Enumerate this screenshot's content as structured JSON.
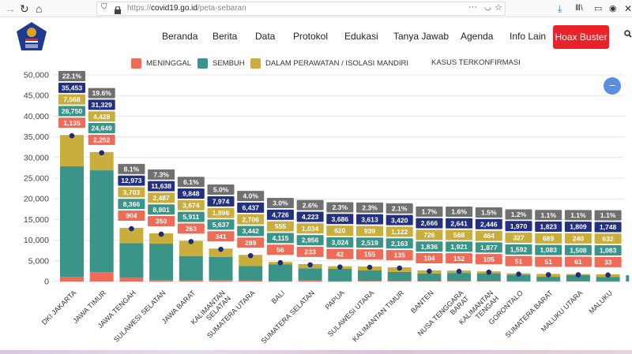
{
  "browser": {
    "url_prefix": "https://",
    "url_domain": "covid19.go.id",
    "url_path": "/peta-sebaran",
    "icons": [
      "forward-icon",
      "reload-icon",
      "home-icon",
      "shield-icon",
      "lock-icon",
      "more-icon",
      "pocket-icon",
      "star-icon",
      "download-icon",
      "library-icon",
      "sidebar-icon",
      "account-icon",
      "close-icon"
    ]
  },
  "site": {
    "logo_alt": "Gugus Tugas Percepatan Penanganan COVID-19",
    "menu": [
      "Beranda",
      "Berita",
      "Data",
      "Protokol",
      "Edukasi",
      "Tanya Jawab",
      "Agenda",
      "Info Lain"
    ],
    "hoax_button": "Hoax Buster",
    "search_icon": "search-icon",
    "fab_icon": "minus",
    "colors": {
      "hoax": "#e8232a",
      "fab": "#5a8fe0"
    }
  },
  "legend": [
    {
      "label": "MENINGGAL",
      "color": "#ee6b57"
    },
    {
      "label": "SEMBUH",
      "color": "#3a9488"
    },
    {
      "label": "DALAM PERAWATAN / ISOLASI MANDIRI",
      "color": "#c9ae3d"
    },
    {
      "label": "KASUS TERKONFIRMASI",
      "color": ""
    }
  ],
  "chart_data": {
    "type": "bar",
    "stacked": true,
    "title": "",
    "xlabel": "",
    "ylabel": "",
    "ylim": [
      0,
      50000
    ],
    "yticks": [
      "0",
      "5,000",
      "10,000",
      "15,000",
      "20,000",
      "25,000",
      "30,000",
      "35,000",
      "40,000",
      "45,000",
      "50,000"
    ],
    "grid": true,
    "legend_position": "top",
    "colors": {
      "meninggal": "#ee6b57",
      "sembuh": "#3a9488",
      "perawatan": "#c9ae3d",
      "terkonfirmasi": "#23307f",
      "persen": "#707070",
      "dot": "#1e2a7a"
    },
    "categories": [
      "DKI JAKARTA",
      "JAWA TIMUR",
      "JAWA TENGAH",
      "SULAWESI SELATAN",
      "JAWA BARAT",
      "KALIMANTAN SELATAN",
      "SUMATERA UTARA",
      "BALI",
      "SUMATERA SELATAN",
      "PAPUA",
      "SULAWESI UTARA",
      "KALIMANTAN TIMUR",
      "BANTEN",
      "NUSA TENGGARA BARAT",
      "KALIMANTAN TENGAH",
      "GORONTALO",
      "SUMATERA BARAT",
      "MALUKU UTARA",
      "MALUKU"
    ],
    "category_lines": [
      [
        "DKI JAKARTA"
      ],
      [
        "JAWA TIMUR"
      ],
      [
        "JAWA TENGAH"
      ],
      [
        "SULAWESI SELATAN"
      ],
      [
        "JAWA BARAT"
      ],
      [
        "KALIMANTAN",
        "SELATAN"
      ],
      [
        "SUMATERA UTARA"
      ],
      [
        "BALI"
      ],
      [
        "SUMATERA SELATAN"
      ],
      [
        "PAPUA"
      ],
      [
        "SULAWESI UTARA"
      ],
      [
        "KALIMANTAN TIMUR"
      ],
      [
        "BANTEN"
      ],
      [
        "NUSA TENGGARA",
        "BARAT"
      ],
      [
        "KALIMANTAN",
        "TENGAH"
      ],
      [
        "GORONTALO"
      ],
      [
        "SUMATERA BARAT"
      ],
      [
        "MALUKU UTARA"
      ],
      [
        "MALUKU"
      ]
    ],
    "series": [
      {
        "name": "MENINGGAL",
        "key": "meninggal",
        "values": [
          1135,
          2252,
          904,
          350,
          263,
          341,
          289,
          56,
          233,
          42,
          155,
          135,
          104,
          152,
          105,
          51,
          51,
          61,
          33
        ]
      },
      {
        "name": "SEMBUH",
        "key": "sembuh",
        "values": [
          26750,
          24649,
          8366,
          8801,
          5911,
          5637,
          3442,
          4115,
          2956,
          3024,
          2519,
          2163,
          1836,
          1921,
          1877,
          1592,
          1083,
          1508,
          1083
        ]
      },
      {
        "name": "DALAM PERAWATAN / ISOLASI MANDIRI",
        "key": "perawatan",
        "values": [
          7568,
          4428,
          3703,
          2487,
          3674,
          1996,
          2706,
          555,
          1034,
          620,
          939,
          1122,
          726,
          568,
          464,
          327,
          689,
          240,
          632
        ]
      },
      {
        "name": "KASUS TERKONFIRMASI",
        "key": "terkonfirmasi",
        "values": [
          35453,
          31329,
          12973,
          11638,
          9848,
          7974,
          6437,
          4726,
          4223,
          3686,
          3613,
          3420,
          2666,
          2641,
          2446,
          1970,
          1823,
          1809,
          1748
        ]
      }
    ],
    "percent_labels": [
      "22.1%",
      "19.6%",
      "8.1%",
      "7.3%",
      "6.1%",
      "5.0%",
      "4.0%",
      "3.0%",
      "2.6%",
      "2.3%",
      "2.3%",
      "2.1%",
      "1.7%",
      "1.6%",
      "1.5%",
      "1.2%",
      "1.1%",
      "1.1%",
      "1.1%"
    ],
    "value_labels": {
      "meninggal": [
        "1,135",
        "2,252",
        "904",
        "350",
        "263",
        "341",
        "289",
        "56",
        "233",
        "42",
        "155",
        "135",
        "104",
        "152",
        "105",
        "51",
        "51",
        "61",
        "33"
      ],
      "sembuh": [
        "26,750",
        "24,649",
        "8,366",
        "8,801",
        "5,911",
        "5,637",
        "3,442",
        "4,115",
        "2,956",
        "3,024",
        "2,519",
        "2,163",
        "1,836",
        "1,921",
        "1,877",
        "1,592",
        "1,083",
        "1,508",
        "1,083"
      ],
      "perawatan": [
        "7,568",
        "4,428",
        "3,703",
        "2,487",
        "3,674",
        "1,996",
        "2,706",
        "555",
        "1,034",
        "620",
        "939",
        "1,122",
        "726",
        "568",
        "464",
        "327",
        "689",
        "240",
        "632"
      ],
      "terkonfirmasi": [
        "35,453",
        "31,329",
        "12,973",
        "11,638",
        "9,848",
        "7,974",
        "6,437",
        "4,726",
        "4,223",
        "3,686",
        "3,613",
        "3,420",
        "2,666",
        "2,641",
        "2,446",
        "1,970",
        "1,823",
        "1,809",
        "1,748"
      ]
    }
  }
}
